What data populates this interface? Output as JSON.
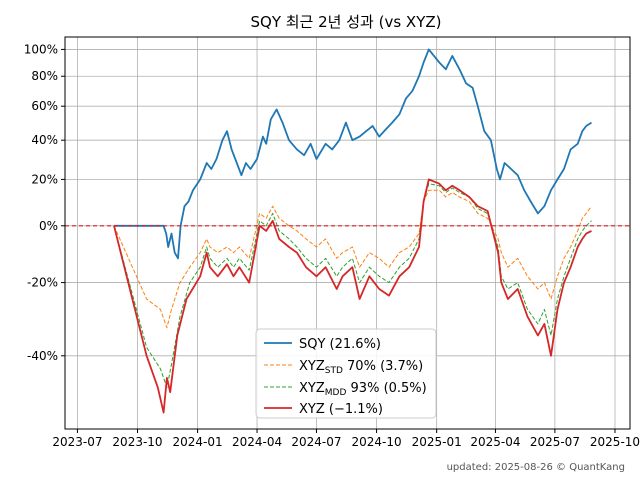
{
  "chart_data": {
    "type": "line",
    "title": "SQY 최근 2년 성과 (vs XYZ)",
    "footer": "updated: 2025-08-26 © QuantKang",
    "y_scale": "log(1+r)",
    "x_ticks": [
      "2023-07",
      "2023-10",
      "2024-01",
      "2024-04",
      "2024-07",
      "2024-10",
      "2025-01",
      "2025-04",
      "2025-07",
      "2025-10"
    ],
    "y_ticks": [
      {
        "value": 100,
        "label": "100%"
      },
      {
        "value": 80,
        "label": "80%"
      },
      {
        "value": 60,
        "label": "60%"
      },
      {
        "value": 40,
        "label": "40%"
      },
      {
        "value": 20,
        "label": "20%"
      },
      {
        "value": 0,
        "label": "0%"
      },
      {
        "value": -20,
        "label": "-20%"
      },
      {
        "value": -40,
        "label": "-40%"
      }
    ],
    "ylim": [
      -55,
      110
    ],
    "xlim": [
      "2023-06-12",
      "2025-10-24"
    ],
    "zero_line_color": "#e31a1c",
    "grid": true,
    "legend_position": "lower-center",
    "legend": [
      {
        "label": "SQY (21.6%)",
        "color": "#1f77b4",
        "style": "solid"
      },
      {
        "label": "XYZ",
        "sub": "STD",
        "rest": " 70% (3.7%)",
        "color": "#ff7f0e",
        "style": "dashed"
      },
      {
        "label": "XYZ",
        "sub": "MDD",
        "rest": " 93% (0.5%)",
        "color": "#2ca02c",
        "style": "dashed"
      },
      {
        "label": "XYZ (−1.1%)",
        "color": "#d62728",
        "style": "solid"
      }
    ],
    "series": [
      {
        "name": "SQY",
        "color": "#1f77b4",
        "style": "solid",
        "width": 1.8,
        "points": [
          [
            "2023-08-26",
            0
          ],
          [
            "2023-11-10",
            0
          ],
          [
            "2023-11-14",
            -3
          ],
          [
            "2023-11-17",
            -8
          ],
          [
            "2023-11-22",
            -3
          ],
          [
            "2023-11-27",
            -10
          ],
          [
            "2023-12-02",
            -12
          ],
          [
            "2023-12-06",
            0
          ],
          [
            "2023-12-12",
            8
          ],
          [
            "2023-12-18",
            10
          ],
          [
            "2023-12-25",
            15
          ],
          [
            "2024-01-05",
            20
          ],
          [
            "2024-01-15",
            28
          ],
          [
            "2024-01-22",
            25
          ],
          [
            "2024-01-30",
            30
          ],
          [
            "2024-02-08",
            40
          ],
          [
            "2024-02-15",
            45
          ],
          [
            "2024-02-22",
            35
          ],
          [
            "2024-03-01",
            28
          ],
          [
            "2024-03-08",
            22
          ],
          [
            "2024-03-15",
            28
          ],
          [
            "2024-03-22",
            25
          ],
          [
            "2024-04-01",
            30
          ],
          [
            "2024-04-10",
            42
          ],
          [
            "2024-04-15",
            38
          ],
          [
            "2024-04-22",
            52
          ],
          [
            "2024-05-01",
            58
          ],
          [
            "2024-05-10",
            50
          ],
          [
            "2024-05-20",
            40
          ],
          [
            "2024-06-01",
            35
          ],
          [
            "2024-06-12",
            32
          ],
          [
            "2024-06-22",
            38
          ],
          [
            "2024-07-01",
            30
          ],
          [
            "2024-07-15",
            38
          ],
          [
            "2024-07-25",
            35
          ],
          [
            "2024-08-05",
            40
          ],
          [
            "2024-08-15",
            50
          ],
          [
            "2024-08-25",
            40
          ],
          [
            "2024-09-05",
            42
          ],
          [
            "2024-09-15",
            45
          ],
          [
            "2024-09-25",
            48
          ],
          [
            "2024-10-05",
            42
          ],
          [
            "2024-10-15",
            46
          ],
          [
            "2024-10-25",
            50
          ],
          [
            "2024-11-05",
            55
          ],
          [
            "2024-11-15",
            65
          ],
          [
            "2024-11-25",
            70
          ],
          [
            "2024-12-05",
            80
          ],
          [
            "2024-12-12",
            90
          ],
          [
            "2024-12-20",
            100
          ],
          [
            "2024-12-28",
            95
          ],
          [
            "2025-01-05",
            90
          ],
          [
            "2025-01-15",
            85
          ],
          [
            "2025-01-25",
            95
          ],
          [
            "2025-02-05",
            85
          ],
          [
            "2025-02-15",
            75
          ],
          [
            "2025-02-25",
            72
          ],
          [
            "2025-03-05",
            60
          ],
          [
            "2025-03-15",
            45
          ],
          [
            "2025-03-25",
            40
          ],
          [
            "2025-04-03",
            25
          ],
          [
            "2025-04-08",
            20
          ],
          [
            "2025-04-15",
            28
          ],
          [
            "2025-04-25",
            25
          ],
          [
            "2025-05-05",
            22
          ],
          [
            "2025-05-15",
            15
          ],
          [
            "2025-05-25",
            10
          ],
          [
            "2025-06-05",
            5
          ],
          [
            "2025-06-15",
            8
          ],
          [
            "2025-06-25",
            15
          ],
          [
            "2025-07-05",
            20
          ],
          [
            "2025-07-15",
            25
          ],
          [
            "2025-07-25",
            35
          ],
          [
            "2025-08-05",
            38
          ],
          [
            "2025-08-12",
            45
          ],
          [
            "2025-08-18",
            48
          ],
          [
            "2025-08-26",
            50
          ]
        ]
      },
      {
        "name": "XYZ STD 70%",
        "color": "#ff7f0e",
        "style": "dashed",
        "width": 1.0,
        "points": [
          [
            "2023-08-26",
            0
          ],
          [
            "2023-10-15",
            -25
          ],
          [
            "2023-11-05",
            -28
          ],
          [
            "2023-11-15",
            -33
          ],
          [
            "2023-11-22",
            -28
          ],
          [
            "2023-12-05",
            -20
          ],
          [
            "2023-12-20",
            -15
          ],
          [
            "2024-01-05",
            -10
          ],
          [
            "2024-01-15",
            -5
          ],
          [
            "2024-01-20",
            -8
          ],
          [
            "2024-02-01",
            -10
          ],
          [
            "2024-02-15",
            -8
          ],
          [
            "2024-02-25",
            -10
          ],
          [
            "2024-03-05",
            -8
          ],
          [
            "2024-03-20",
            -12
          ],
          [
            "2024-04-05",
            5
          ],
          [
            "2024-04-15",
            3
          ],
          [
            "2024-04-25",
            8
          ],
          [
            "2024-05-05",
            3
          ],
          [
            "2024-05-20",
            0
          ],
          [
            "2024-06-01",
            -2
          ],
          [
            "2024-06-15",
            -5
          ],
          [
            "2024-07-01",
            -8
          ],
          [
            "2024-07-15",
            -5
          ],
          [
            "2024-08-01",
            -12
          ],
          [
            "2024-08-10",
            -10
          ],
          [
            "2024-08-25",
            -8
          ],
          [
            "2024-09-05",
            -15
          ],
          [
            "2024-09-20",
            -10
          ],
          [
            "2024-10-05",
            -12
          ],
          [
            "2024-10-20",
            -15
          ],
          [
            "2024-11-05",
            -10
          ],
          [
            "2024-11-20",
            -8
          ],
          [
            "2024-12-05",
            -3
          ],
          [
            "2024-12-12",
            10
          ],
          [
            "2024-12-20",
            15
          ],
          [
            "2025-01-05",
            15
          ],
          [
            "2025-01-15",
            12
          ],
          [
            "2025-01-25",
            14
          ],
          [
            "2025-02-05",
            12
          ],
          [
            "2025-02-20",
            10
          ],
          [
            "2025-03-05",
            5
          ],
          [
            "2025-03-20",
            3
          ],
          [
            "2025-04-05",
            -5
          ],
          [
            "2025-04-10",
            -10
          ],
          [
            "2025-04-20",
            -15
          ],
          [
            "2025-05-05",
            -12
          ],
          [
            "2025-05-20",
            -18
          ],
          [
            "2025-06-05",
            -22
          ],
          [
            "2025-06-15",
            -20
          ],
          [
            "2025-06-25",
            -25
          ],
          [
            "2025-07-05",
            -18
          ],
          [
            "2025-07-15",
            -12
          ],
          [
            "2025-07-25",
            -8
          ],
          [
            "2025-08-05",
            -2
          ],
          [
            "2025-08-12",
            3
          ],
          [
            "2025-08-18",
            5
          ],
          [
            "2025-08-26",
            8
          ]
        ]
      },
      {
        "name": "XYZ MDD 93%",
        "color": "#2ca02c",
        "style": "dashed",
        "width": 1.0,
        "points": [
          [
            "2023-08-26",
            0
          ],
          [
            "2023-10-15",
            -38
          ],
          [
            "2023-11-05",
            -43
          ],
          [
            "2023-11-15",
            -47
          ],
          [
            "2023-11-22",
            -42
          ],
          [
            "2023-12-05",
            -30
          ],
          [
            "2023-12-20",
            -20
          ],
          [
            "2024-01-05",
            -15
          ],
          [
            "2024-01-15",
            -8
          ],
          [
            "2024-01-20",
            -12
          ],
          [
            "2024-02-01",
            -15
          ],
          [
            "2024-02-15",
            -12
          ],
          [
            "2024-02-25",
            -15
          ],
          [
            "2024-03-05",
            -12
          ],
          [
            "2024-03-20",
            -16
          ],
          [
            "2024-04-05",
            2
          ],
          [
            "2024-04-15",
            0
          ],
          [
            "2024-04-25",
            5
          ],
          [
            "2024-05-05",
            -2
          ],
          [
            "2024-05-20",
            -5
          ],
          [
            "2024-06-01",
            -8
          ],
          [
            "2024-06-15",
            -12
          ],
          [
            "2024-07-01",
            -15
          ],
          [
            "2024-07-15",
            -12
          ],
          [
            "2024-08-01",
            -18
          ],
          [
            "2024-08-10",
            -15
          ],
          [
            "2024-08-25",
            -12
          ],
          [
            "2024-09-05",
            -20
          ],
          [
            "2024-09-20",
            -15
          ],
          [
            "2024-10-05",
            -18
          ],
          [
            "2024-10-20",
            -20
          ],
          [
            "2024-11-05",
            -15
          ],
          [
            "2024-11-20",
            -12
          ],
          [
            "2024-12-05",
            -5
          ],
          [
            "2024-12-12",
            10
          ],
          [
            "2024-12-20",
            18
          ],
          [
            "2025-01-05",
            17
          ],
          [
            "2025-01-15",
            14
          ],
          [
            "2025-01-25",
            16
          ],
          [
            "2025-02-05",
            14
          ],
          [
            "2025-02-20",
            12
          ],
          [
            "2025-03-05",
            7
          ],
          [
            "2025-03-20",
            5
          ],
          [
            "2025-04-05",
            -8
          ],
          [
            "2025-04-10",
            -18
          ],
          [
            "2025-04-20",
            -22
          ],
          [
            "2025-05-05",
            -20
          ],
          [
            "2025-05-20",
            -28
          ],
          [
            "2025-06-05",
            -32
          ],
          [
            "2025-06-15",
            -28
          ],
          [
            "2025-06-25",
            -35
          ],
          [
            "2025-07-05",
            -25
          ],
          [
            "2025-07-15",
            -18
          ],
          [
            "2025-07-25",
            -12
          ],
          [
            "2025-08-05",
            -5
          ],
          [
            "2025-08-12",
            -2
          ],
          [
            "2025-08-18",
            0
          ],
          [
            "2025-08-26",
            2
          ]
        ]
      },
      {
        "name": "XYZ",
        "color": "#d62728",
        "style": "solid",
        "width": 1.8,
        "points": [
          [
            "2023-08-26",
            0
          ],
          [
            "2023-10-15",
            -40
          ],
          [
            "2023-11-01",
            -47
          ],
          [
            "2023-11-10",
            -52
          ],
          [
            "2023-11-15",
            -45
          ],
          [
            "2023-11-20",
            -48
          ],
          [
            "2023-12-01",
            -35
          ],
          [
            "2023-12-15",
            -25
          ],
          [
            "2024-01-05",
            -18
          ],
          [
            "2024-01-15",
            -10
          ],
          [
            "2024-01-20",
            -15
          ],
          [
            "2024-02-01",
            -18
          ],
          [
            "2024-02-15",
            -14
          ],
          [
            "2024-02-25",
            -18
          ],
          [
            "2024-03-05",
            -15
          ],
          [
            "2024-03-20",
            -20
          ],
          [
            "2024-04-05",
            0
          ],
          [
            "2024-04-15",
            -2
          ],
          [
            "2024-04-25",
            2
          ],
          [
            "2024-05-05",
            -5
          ],
          [
            "2024-05-20",
            -8
          ],
          [
            "2024-06-01",
            -10
          ],
          [
            "2024-06-15",
            -15
          ],
          [
            "2024-07-01",
            -18
          ],
          [
            "2024-07-15",
            -15
          ],
          [
            "2024-08-01",
            -22
          ],
          [
            "2024-08-10",
            -18
          ],
          [
            "2024-08-25",
            -15
          ],
          [
            "2024-09-05",
            -25
          ],
          [
            "2024-09-20",
            -18
          ],
          [
            "2024-10-05",
            -22
          ],
          [
            "2024-10-20",
            -24
          ],
          [
            "2024-11-05",
            -18
          ],
          [
            "2024-11-20",
            -15
          ],
          [
            "2024-12-05",
            -8
          ],
          [
            "2024-12-12",
            10
          ],
          [
            "2024-12-20",
            20
          ],
          [
            "2025-01-05",
            18
          ],
          [
            "2025-01-15",
            15
          ],
          [
            "2025-01-25",
            17
          ],
          [
            "2025-02-05",
            15
          ],
          [
            "2025-02-20",
            12
          ],
          [
            "2025-03-05",
            8
          ],
          [
            "2025-03-20",
            6
          ],
          [
            "2025-04-05",
            -10
          ],
          [
            "2025-04-10",
            -20
          ],
          [
            "2025-04-20",
            -25
          ],
          [
            "2025-05-05",
            -22
          ],
          [
            "2025-05-20",
            -30
          ],
          [
            "2025-06-05",
            -35
          ],
          [
            "2025-06-15",
            -32
          ],
          [
            "2025-06-25",
            -40
          ],
          [
            "2025-07-05",
            -28
          ],
          [
            "2025-07-15",
            -20
          ],
          [
            "2025-07-25",
            -15
          ],
          [
            "2025-08-05",
            -8
          ],
          [
            "2025-08-12",
            -5
          ],
          [
            "2025-08-18",
            -3
          ],
          [
            "2025-08-26",
            -2
          ]
        ]
      }
    ]
  }
}
